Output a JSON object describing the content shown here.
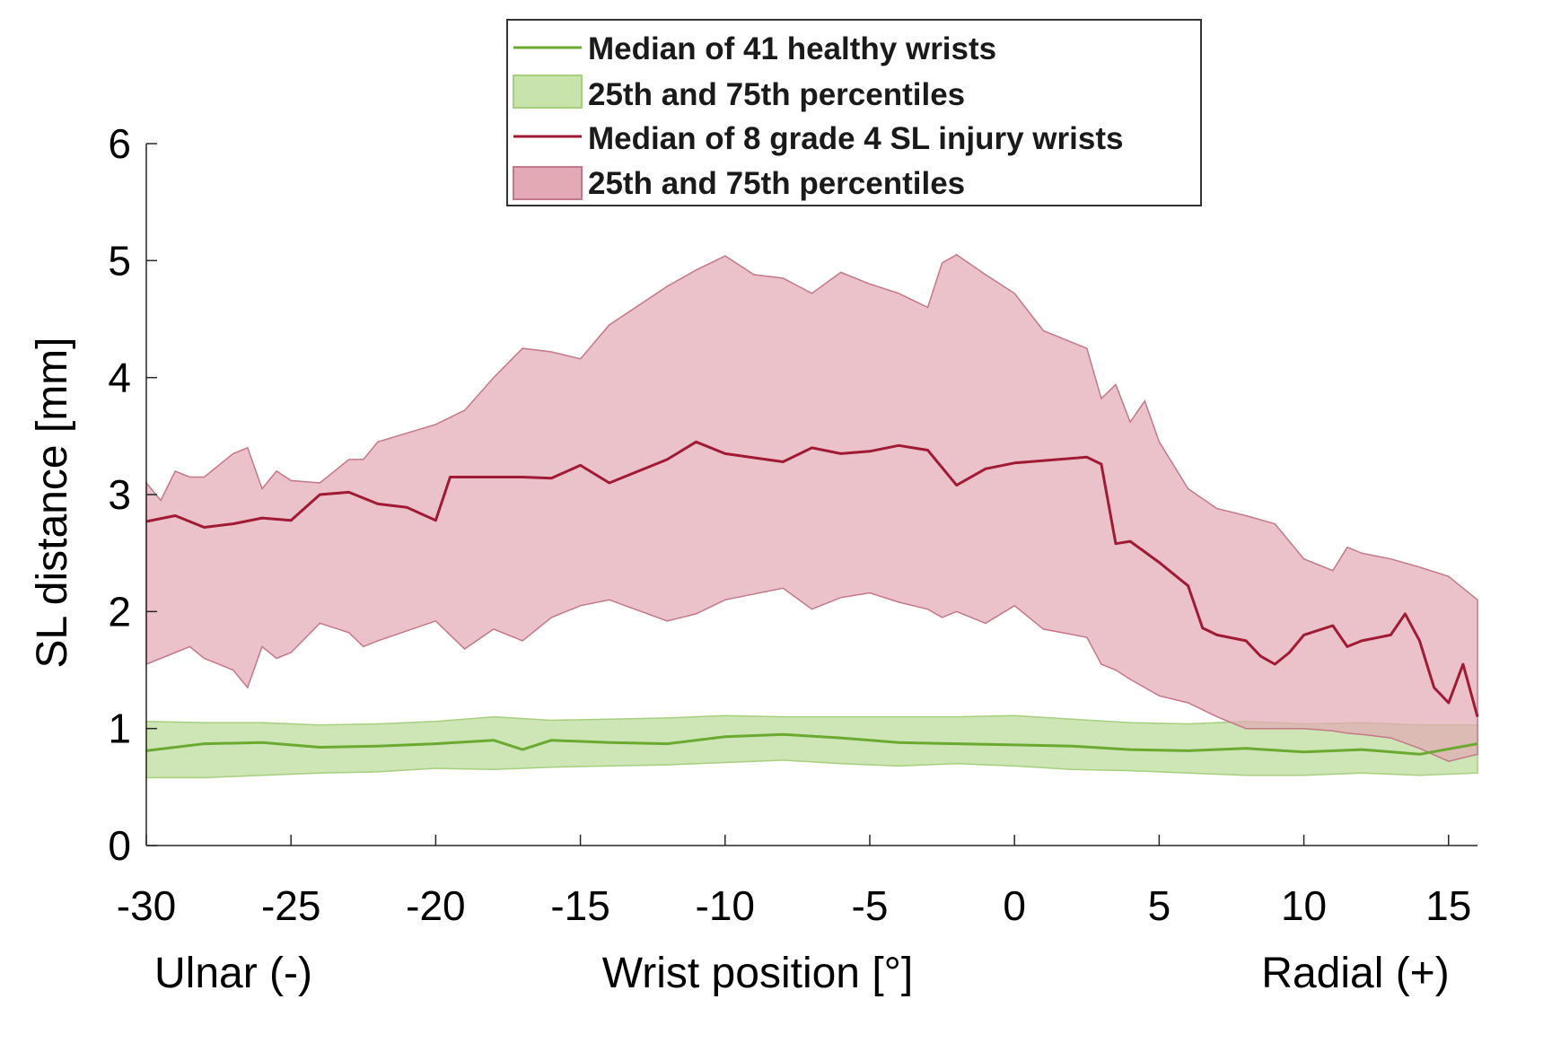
{
  "chart_data": {
    "type": "line",
    "title": "",
    "xlabel": "Wrist position [°]",
    "xlabel_left": "Ulnar (-)",
    "xlabel_right": "Radial (+)",
    "ylabel": "SL distance [mm]",
    "xlim": [
      -30,
      16
    ],
    "ylim": [
      0,
      6
    ],
    "xticks": [
      "-30",
      "-25",
      "-20",
      "-15",
      "-10",
      "-5",
      "0",
      "5",
      "10",
      "15"
    ],
    "yticks": [
      "0",
      "1",
      "2",
      "3",
      "4",
      "5",
      "6"
    ],
    "grid": false,
    "legend_position": "top-center",
    "colors": {
      "healthy_line": "#6aaa30",
      "healthy_band": "#c9e3ad",
      "injury_line": "#a01a33",
      "injury_band": "#e3aab6"
    },
    "series": [
      {
        "name": "Median of 41 healthy wrists",
        "kind": "line",
        "x": [
          -30,
          -28,
          -26,
          -24,
          -22,
          -20,
          -18,
          -17,
          -16,
          -14,
          -12,
          -10,
          -8,
          -6,
          -4,
          -2,
          0,
          2,
          4,
          6,
          8,
          10,
          12,
          14,
          16
        ],
        "y": [
          0.81,
          0.87,
          0.88,
          0.84,
          0.85,
          0.87,
          0.9,
          0.82,
          0.9,
          0.88,
          0.87,
          0.93,
          0.95,
          0.92,
          0.88,
          0.87,
          0.86,
          0.85,
          0.82,
          0.81,
          0.83,
          0.8,
          0.82,
          0.78,
          0.87
        ]
      },
      {
        "name": "25th and 75th percentiles",
        "kind": "band",
        "x": [
          -30,
          -28,
          -26,
          -24,
          -22,
          -20,
          -18,
          -16,
          -14,
          -12,
          -10,
          -8,
          -6,
          -4,
          -2,
          0,
          2,
          4,
          6,
          8,
          10,
          12,
          14,
          16
        ],
        "lower": [
          0.58,
          0.58,
          0.6,
          0.62,
          0.63,
          0.66,
          0.65,
          0.67,
          0.68,
          0.69,
          0.71,
          0.73,
          0.7,
          0.68,
          0.7,
          0.68,
          0.65,
          0.64,
          0.62,
          0.6,
          0.6,
          0.62,
          0.6,
          0.62
        ],
        "upper": [
          1.06,
          1.05,
          1.05,
          1.03,
          1.04,
          1.06,
          1.1,
          1.07,
          1.08,
          1.09,
          1.11,
          1.1,
          1.1,
          1.1,
          1.1,
          1.11,
          1.08,
          1.05,
          1.04,
          1.06,
          1.04,
          1.05,
          1.03,
          1.03
        ]
      },
      {
        "name": "Median of 8 grade 4 SL injury wrists",
        "kind": "line",
        "x": [
          -30,
          -29,
          -28,
          -27,
          -26,
          -25,
          -24,
          -23,
          -22,
          -21,
          -20,
          -19.5,
          -17,
          -16,
          -15,
          -14,
          -12,
          -11,
          -10,
          -8,
          -7,
          -6,
          -5,
          -4,
          -3,
          -2,
          -1,
          0,
          2.5,
          3,
          3.5,
          4,
          5,
          6,
          6.5,
          7,
          8,
          8.5,
          9,
          9.5,
          10,
          11,
          11.5,
          12,
          13,
          13.5,
          14,
          14.5,
          15,
          15.5,
          16
        ],
        "y": [
          2.77,
          2.82,
          2.72,
          2.75,
          2.8,
          2.78,
          3.0,
          3.02,
          2.92,
          2.89,
          2.78,
          3.15,
          3.15,
          3.14,
          3.25,
          3.1,
          3.3,
          3.45,
          3.35,
          3.28,
          3.4,
          3.35,
          3.37,
          3.42,
          3.38,
          3.08,
          3.22,
          3.27,
          3.32,
          3.26,
          2.58,
          2.6,
          2.42,
          2.22,
          1.86,
          1.8,
          1.75,
          1.62,
          1.55,
          1.65,
          1.8,
          1.88,
          1.7,
          1.75,
          1.8,
          1.98,
          1.75,
          1.35,
          1.22,
          1.55,
          1.1
        ]
      },
      {
        "name": "25th and 75th percentiles",
        "kind": "band",
        "x": [
          -30,
          -29.5,
          -29,
          -28.5,
          -28,
          -27,
          -26.5,
          -26,
          -25.5,
          -25,
          -24,
          -23,
          -22.5,
          -22,
          -20,
          -19,
          -18,
          -17,
          -16,
          -15,
          -14,
          -12,
          -11,
          -10,
          -9,
          -8,
          -7,
          -6,
          -5,
          -4,
          -3,
          -2.5,
          -2,
          -1,
          0,
          1,
          2.5,
          3,
          3.5,
          4,
          4.5,
          5,
          5.5,
          6,
          7,
          8,
          9,
          10,
          11,
          11.5,
          12,
          13,
          14,
          15,
          16
        ],
        "lower": [
          1.55,
          1.6,
          1.65,
          1.7,
          1.6,
          1.5,
          1.35,
          1.7,
          1.6,
          1.65,
          1.9,
          1.82,
          1.7,
          1.75,
          1.92,
          1.68,
          1.85,
          1.75,
          1.95,
          2.05,
          2.1,
          1.92,
          1.98,
          2.1,
          2.15,
          2.2,
          2.02,
          2.12,
          2.16,
          2.08,
          2.02,
          1.95,
          2.0,
          1.9,
          2.05,
          1.85,
          1.78,
          1.55,
          1.5,
          1.42,
          1.35,
          1.28,
          1.25,
          1.22,
          1.1,
          1.0,
          1.0,
          1.0,
          0.98,
          0.96,
          0.95,
          0.92,
          0.83,
          0.72,
          0.78
        ],
        "upper": [
          3.1,
          2.95,
          3.2,
          3.15,
          3.15,
          3.35,
          3.4,
          3.05,
          3.2,
          3.12,
          3.1,
          3.3,
          3.3,
          3.45,
          3.6,
          3.72,
          4.0,
          4.25,
          4.22,
          4.16,
          4.45,
          4.78,
          4.92,
          5.04,
          4.88,
          4.85,
          4.72,
          4.9,
          4.8,
          4.72,
          4.6,
          4.98,
          5.05,
          4.88,
          4.72,
          4.4,
          4.25,
          3.82,
          3.94,
          3.62,
          3.8,
          3.45,
          3.25,
          3.05,
          2.88,
          2.82,
          2.75,
          2.45,
          2.35,
          2.55,
          2.5,
          2.45,
          2.38,
          2.3,
          2.1
        ]
      }
    ]
  }
}
